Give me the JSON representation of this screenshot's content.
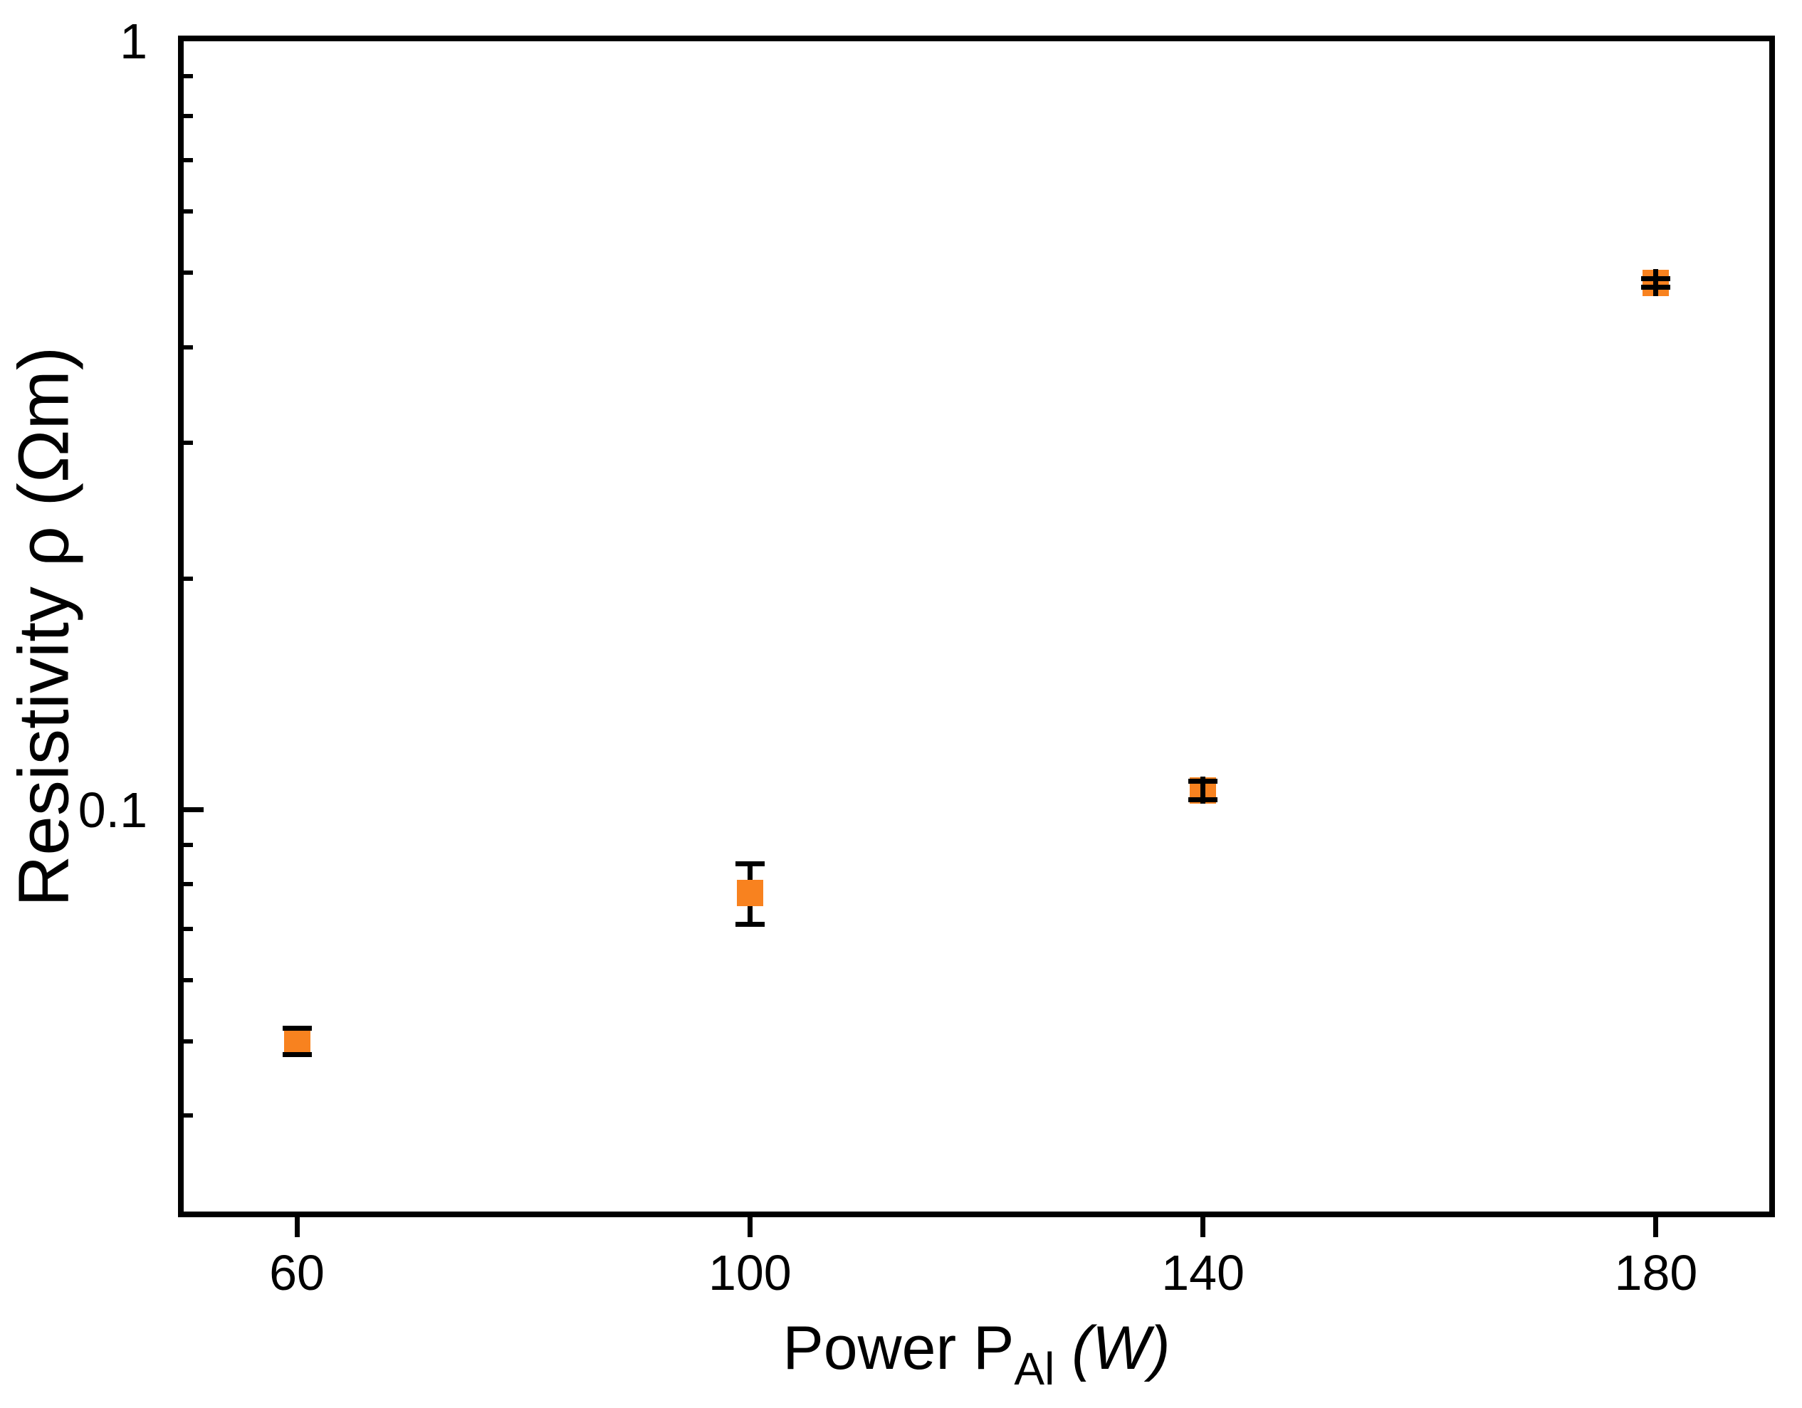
{
  "figure": {
    "background": "#FFFFFF",
    "axis_color": "#000000"
  },
  "chart_data": {
    "type": "scatter",
    "title": "",
    "xlabel": "Power P_Al (W)",
    "xlabel_parts": {
      "main": "Power P",
      "sub": "Al",
      "unit": "(W)"
    },
    "ylabel": "Resistivity ρ (Ωm)",
    "xscale": "linear",
    "yscale": "log",
    "xlim": [
      50,
      190
    ],
    "ylim": [
      0.03,
      1
    ],
    "grid": false,
    "legend": false,
    "xticks": [
      {
        "value": 60,
        "label": "60"
      },
      {
        "value": 100,
        "label": "100"
      },
      {
        "value": 140,
        "label": "140"
      },
      {
        "value": 180,
        "label": "180"
      }
    ],
    "yticks": [
      {
        "value": 1,
        "label": "1"
      },
      {
        "value": 0.1,
        "label": "0.1"
      }
    ],
    "yticks_minor": [
      0.9,
      0.8,
      0.7,
      0.6,
      0.5,
      0.4,
      0.3,
      0.2,
      0.09,
      0.08,
      0.07,
      0.06,
      0.05,
      0.04
    ],
    "series": [
      {
        "name": "resistivity-vs-al-power",
        "marker": "filled-square",
        "marker_color": "#F8821F",
        "error_bar_color": "#000000",
        "points": [
          {
            "x": 60,
            "y": 0.05,
            "y_err": 0.002
          },
          {
            "x": 100,
            "y": 0.078,
            "y_err": 0.007
          },
          {
            "x": 140,
            "y": 0.106,
            "y_err": 0.003
          },
          {
            "x": 180,
            "y": 0.485,
            "y_err": 0.006
          }
        ]
      }
    ]
  }
}
